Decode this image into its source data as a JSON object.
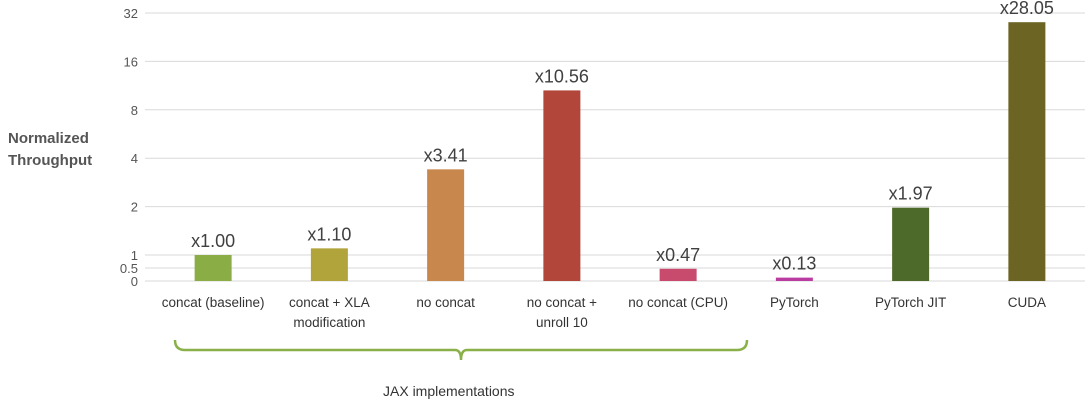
{
  "chart_data": {
    "type": "bar",
    "ylabel": [
      "Normalized",
      "Throughput"
    ],
    "y_tick_labels": [
      "0",
      "0.5",
      "1",
      "2",
      "4",
      "8",
      "16",
      "32"
    ],
    "categories": [
      [
        "concat (baseline)"
      ],
      [
        "concat + XLA",
        "modification"
      ],
      [
        "no concat"
      ],
      [
        "no concat +",
        "unroll 10"
      ],
      [
        "no concat (CPU)"
      ],
      [
        "PyTorch"
      ],
      [
        "PyTorch JIT"
      ],
      [
        "CUDA"
      ]
    ],
    "values": [
      1.0,
      1.1,
      3.41,
      10.56,
      0.47,
      0.13,
      1.97,
      28.05
    ],
    "data_labels": [
      "x1.00",
      "x1.10",
      "x3.41",
      "x10.56",
      "x0.47",
      "x0.13",
      "x1.97",
      "x28.05"
    ],
    "colors": [
      "#8aae45",
      "#b0a43a",
      "#c8874d",
      "#b3463b",
      "#c84b6e",
      "#bb3ca0",
      "#4e6a2a",
      "#6b6423"
    ],
    "bracket_label": "JAX implementations",
    "bracket_color": "#8ab04a",
    "grid": true
  }
}
